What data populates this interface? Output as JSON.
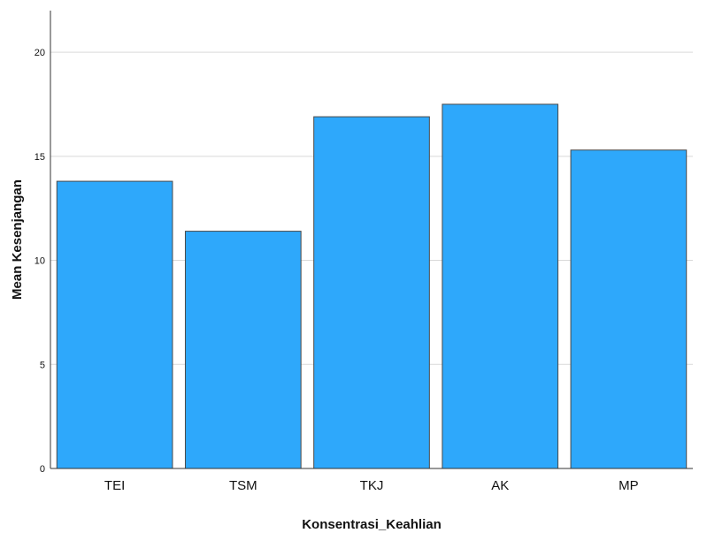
{
  "chart_data": {
    "type": "bar",
    "title": "",
    "xlabel": "Konsentrasi_Keahlian",
    "ylabel": "Mean Kesenjangan",
    "categories": [
      "TEI",
      "TSM",
      "TKJ",
      "AK",
      "MP"
    ],
    "values": [
      13.8,
      11.4,
      16.9,
      17.5,
      15.3
    ],
    "ylim": [
      0,
      22
    ],
    "yticks": [
      0,
      5,
      10,
      15,
      20
    ],
    "grid": true,
    "bar_color": "#2ea8fb",
    "bar_edge_color": "#4a4a4a"
  }
}
